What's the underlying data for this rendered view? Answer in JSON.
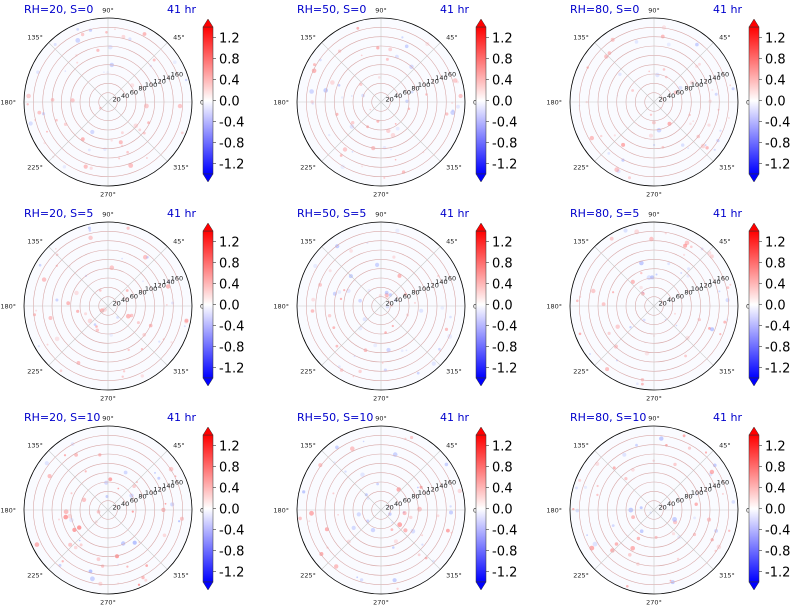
{
  "chart_data": {
    "type": "polar-heatmap",
    "colormap": "bwr",
    "color_low": "#0000ff",
    "color_mid": "#ffffff",
    "color_high": "#ff0000",
    "colorbar": {
      "ticks": [
        "1.2",
        "0.8",
        "0.4",
        "0.0",
        "-0.4",
        "-0.8",
        "-1.2"
      ],
      "range": [
        -1.4,
        1.4
      ],
      "extend": "both"
    },
    "angle_ticks": [
      "0°",
      "45°",
      "90°",
      "135°",
      "180°",
      "225°",
      "270°",
      "315°"
    ],
    "radial_ticks": [
      "20",
      "40",
      "60",
      "80",
      "100",
      "120",
      "140",
      "160"
    ],
    "radial_range": [
      0,
      180
    ],
    "panels": [
      {
        "title_left": "RH=20, S=0",
        "title_right": "41 hr",
        "intensity": 0.25
      },
      {
        "title_left": "RH=50, S=0",
        "title_right": "41 hr",
        "intensity": 0.3
      },
      {
        "title_left": "RH=80, S=0",
        "title_right": "41 hr",
        "intensity": 0.35
      },
      {
        "title_left": "RH=20, S=5",
        "title_right": "41 hr",
        "intensity": 0.3
      },
      {
        "title_left": "RH=50, S=5",
        "title_right": "41 hr",
        "intensity": 0.3
      },
      {
        "title_left": "RH=80, S=5",
        "title_right": "41 hr",
        "intensity": 0.4
      },
      {
        "title_left": "RH=20, S=10",
        "title_right": "41 hr",
        "intensity": 0.6
      },
      {
        "title_left": "RH=50, S=10",
        "title_right": "41 hr",
        "intensity": 0.45
      },
      {
        "title_left": "RH=80, S=10",
        "title_right": "41 hr",
        "intensity": 0.4
      }
    ]
  }
}
